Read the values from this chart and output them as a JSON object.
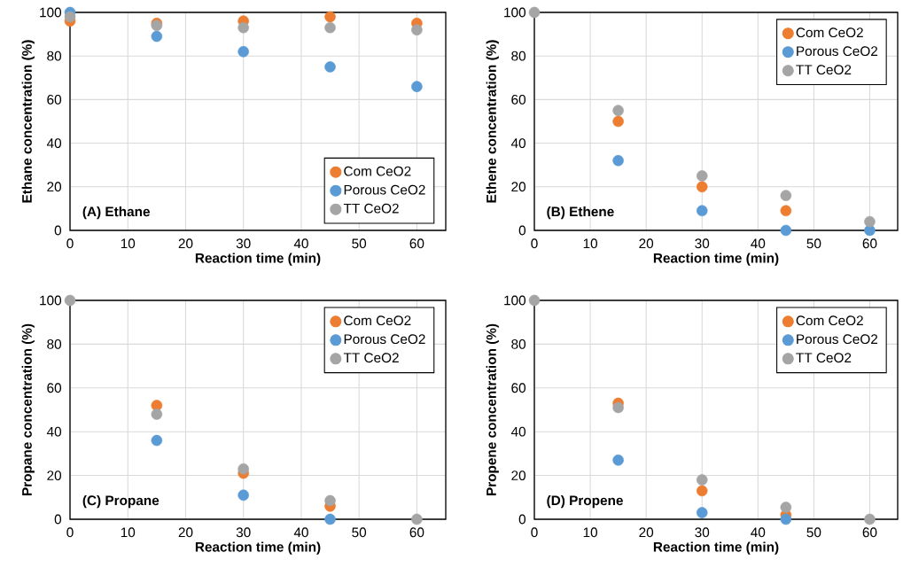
{
  "chart_data": [
    {
      "type": "scatter",
      "xlabel": "Reaction time (min)",
      "ylabel": "Ethane concentration (%)",
      "annotations": [
        "(A) Ethane"
      ],
      "x": [
        0,
        15,
        30,
        45,
        60
      ],
      "series": [
        {
          "name": "Com CeO2",
          "color": "#ed7d31",
          "values": [
            96,
            95,
            96,
            98,
            95
          ]
        },
        {
          "name": "Porous CeO2",
          "color": "#5b9bd5",
          "values": [
            100,
            89,
            82,
            75,
            66
          ]
        },
        {
          "name": "TT CeO2",
          "color": "#a5a5a5",
          "values": [
            98,
            94,
            93,
            93,
            92
          ]
        }
      ],
      "xlim": [
        0,
        65
      ],
      "ylim": [
        0,
        100
      ],
      "xticks": [
        0,
        10,
        20,
        30,
        40,
        50,
        60
      ],
      "yticks": [
        0,
        20,
        40,
        60,
        80,
        100
      ],
      "grid": true,
      "legend": "bottom right",
      "marker": "circle"
    },
    {
      "type": "scatter",
      "xlabel": "Reaction time (min)",
      "ylabel": "Ethene concentration (%)",
      "annotations": [
        "(B) Ethene"
      ],
      "x": [
        0,
        15,
        30,
        45,
        60
      ],
      "series": [
        {
          "name": "Com CeO2",
          "color": "#ed7d31",
          "values": [
            null,
            50,
            20,
            9,
            null
          ]
        },
        {
          "name": "Porous CeO2",
          "color": "#5b9bd5",
          "values": [
            null,
            32,
            9,
            0,
            0
          ]
        },
        {
          "name": "TT CeO2",
          "color": "#a5a5a5",
          "values": [
            100,
            55,
            25,
            16,
            4
          ]
        }
      ],
      "xlim": [
        0,
        65
      ],
      "ylim": [
        0,
        100
      ],
      "xticks": [
        0,
        10,
        20,
        30,
        40,
        50,
        60
      ],
      "yticks": [
        0,
        20,
        40,
        60,
        80,
        100
      ],
      "grid": true,
      "legend": "top right",
      "marker": "circle"
    },
    {
      "type": "scatter",
      "xlabel": "Reaction time (min)",
      "ylabel": "Propane concentration (%)",
      "annotations": [
        "(C) Propane"
      ],
      "x": [
        0,
        15,
        30,
        45,
        60
      ],
      "series": [
        {
          "name": "Com CeO2",
          "color": "#ed7d31",
          "values": [
            null,
            52,
            21,
            6,
            null
          ]
        },
        {
          "name": "Porous CeO2",
          "color": "#5b9bd5",
          "values": [
            null,
            36,
            11,
            0,
            null
          ]
        },
        {
          "name": "TT CeO2",
          "color": "#a5a5a5",
          "values": [
            100,
            48,
            23,
            8.5,
            0
          ]
        }
      ],
      "xlim": [
        0,
        65
      ],
      "ylim": [
        0,
        100
      ],
      "xticks": [
        0,
        10,
        20,
        30,
        40,
        50,
        60
      ],
      "yticks": [
        0,
        20,
        40,
        60,
        80,
        100
      ],
      "grid": true,
      "legend": "top right",
      "marker": "circle"
    },
    {
      "type": "scatter",
      "xlabel": "Reaction time (min)",
      "ylabel": "Propene concentration (%)",
      "annotations": [
        "(D) Propene"
      ],
      "x": [
        0,
        15,
        30,
        45,
        60
      ],
      "series": [
        {
          "name": "Com CeO2",
          "color": "#ed7d31",
          "values": [
            null,
            53,
            13,
            2,
            null
          ]
        },
        {
          "name": "Porous CeO2",
          "color": "#5b9bd5",
          "values": [
            null,
            27,
            3,
            0,
            null
          ]
        },
        {
          "name": "TT CeO2",
          "color": "#a5a5a5",
          "values": [
            100,
            51,
            18,
            5.5,
            0
          ]
        }
      ],
      "xlim": [
        0,
        65
      ],
      "ylim": [
        0,
        100
      ],
      "xticks": [
        0,
        10,
        20,
        30,
        40,
        50,
        60
      ],
      "yticks": [
        0,
        20,
        40,
        60,
        80,
        100
      ],
      "grid": true,
      "legend": "top right",
      "marker": "circle"
    }
  ]
}
